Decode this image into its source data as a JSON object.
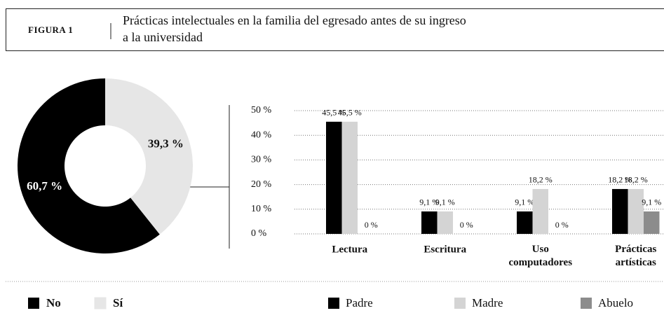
{
  "figure": {
    "label": "FIGURA 1",
    "title_lines": [
      "Prácticas intelectuales en la familia del egresado antes de su ingreso",
      "a la universidad"
    ]
  },
  "chart_data": [
    {
      "type": "pie",
      "donut": true,
      "categories": [
        "No",
        "Sí"
      ],
      "values": [
        60.7,
        39.3
      ],
      "value_labels": [
        "60,7 %",
        "39,3 %"
      ],
      "colors": [
        "#000000",
        "#e6e6e6"
      ]
    },
    {
      "type": "bar",
      "categories": [
        "Lectura",
        "Escritura",
        "Uso computadores",
        "Prácticas artísticas"
      ],
      "series": [
        {
          "name": "Padre",
          "color": "#000000",
          "values": [
            45.5,
            9.1,
            9.1,
            18.2
          ],
          "value_labels": [
            "45,5 %",
            "9,1 %",
            "9,1 %",
            "18,2 %"
          ]
        },
        {
          "name": "Madre",
          "color": "#d4d4d4",
          "values": [
            45.5,
            9.1,
            18.2,
            18.2
          ],
          "value_labels": [
            "45,5 %",
            "9,1 %",
            "18,2 %",
            "18,2 %"
          ]
        },
        {
          "name": "Abuelo",
          "color": "#8c8c8c",
          "values": [
            0,
            0,
            0,
            9.1
          ],
          "value_labels": [
            "0 %",
            "0 %",
            "0 %",
            "9,1 %"
          ]
        }
      ],
      "ylim": [
        0,
        50
      ],
      "yticks": [
        {
          "value": 0,
          "label": "0 %"
        },
        {
          "value": 10,
          "label": "10 %"
        },
        {
          "value": 20,
          "label": "20 %"
        },
        {
          "value": 30,
          "label": "30 %"
        },
        {
          "value": 40,
          "label": "40 %"
        },
        {
          "value": 50,
          "label": "50 %"
        }
      ],
      "grid": true
    }
  ]
}
